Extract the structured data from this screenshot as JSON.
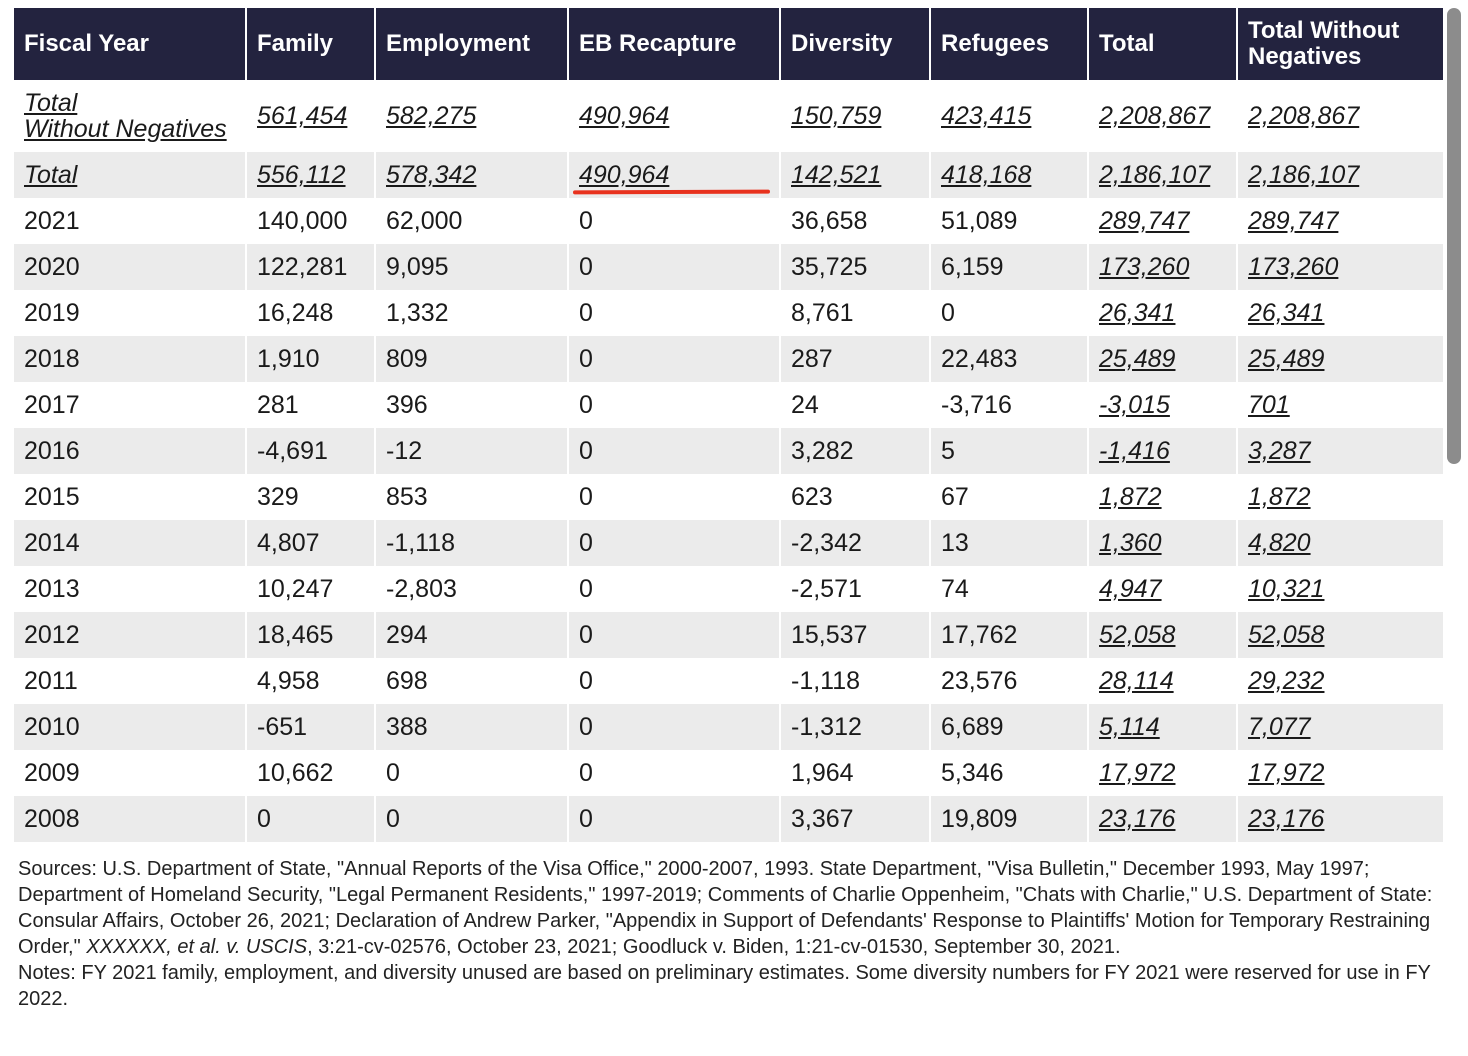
{
  "table": {
    "headers": [
      "Fiscal Year",
      "Family",
      "Employment",
      "EB Recapture",
      "Diversity",
      "Refugees",
      "Total",
      "Total Without Negatives"
    ],
    "rows": [
      [
        "Total Without Negatives",
        "561,454",
        "582,275",
        "490,964",
        "150,759",
        "423,415",
        "2,208,867",
        "2,208,867"
      ],
      [
        "Total",
        "556,112",
        "578,342",
        "490,964",
        "142,521",
        "418,168",
        "2,186,107",
        "2,186,107"
      ],
      [
        "2021",
        "140,000",
        "62,000",
        "0",
        "36,658",
        "51,089",
        "289,747",
        "289,747"
      ],
      [
        "2020",
        "122,281",
        "9,095",
        "0",
        "35,725",
        "6,159",
        "173,260",
        "173,260"
      ],
      [
        "2019",
        "16,248",
        "1,332",
        "0",
        "8,761",
        "0",
        "26,341",
        "26,341"
      ],
      [
        "2018",
        "1,910",
        "809",
        "0",
        "287",
        "22,483",
        "25,489",
        "25,489"
      ],
      [
        "2017",
        "281",
        "396",
        "0",
        "24",
        "-3,716",
        "-3,015",
        "701"
      ],
      [
        "2016",
        "-4,691",
        "-12",
        "0",
        "3,282",
        "5",
        "-1,416",
        "3,287"
      ],
      [
        "2015",
        "329",
        "853",
        "0",
        "623",
        "67",
        "1,872",
        "1,872"
      ],
      [
        "2014",
        "4,807",
        "-1,118",
        "0",
        "-2,342",
        "13",
        "1,360",
        "4,820"
      ],
      [
        "2013",
        "10,247",
        "-2,803",
        "0",
        "-2,571",
        "74",
        "4,947",
        "10,321"
      ],
      [
        "2012",
        "18,465",
        "294",
        "0",
        "15,537",
        "17,762",
        "52,058",
        "52,058"
      ],
      [
        "2011",
        "4,958",
        "698",
        "0",
        "-1,118",
        "23,576",
        "28,114",
        "29,232"
      ],
      [
        "2010",
        "-651",
        "388",
        "0",
        "-1,312",
        "6,689",
        "5,114",
        "7,077"
      ],
      [
        "2009",
        "10,662",
        "0",
        "0",
        "1,964",
        "5,346",
        "17,972",
        "17,972"
      ],
      [
        "2008",
        "0",
        "0",
        "0",
        "3,367",
        "19,809",
        "23,176",
        "23,176"
      ]
    ]
  },
  "sources": {
    "prefix": "Sources: U.S. Department of State, \"Annual Reports of the Visa Office,\" 2000-2007, 1993. State Department, \"Visa Bulletin,\" December 1993, May 1997; Department of Homeland Security, \"Legal Permanent Residents,\" 1997-2019; Comments of Charlie Oppenheim, \"Chats with Charlie,\" U.S. Department of State: Consular Affairs, October 26, 2021; Declaration of Andrew Parker, \"Appendix in Support of Defendants' Response to Plaintiffs' Motion for Temporary Restraining Order,\" ",
    "case": "XXXXXX, et al. v. USCIS",
    "suffix": ", 3:21-cv-02576, October 23, 2021; Goodluck v. Biden, 1:21-cv-01530, September 30, 2021."
  },
  "notes": " Notes: FY 2021 family, employment, and diversity unused are based on preliminary estimates. Some diversity numbers for FY 2021 were reserved for use in FY 2022.",
  "colors": {
    "header_bg": "#23233f",
    "stripe": "#ebebeb",
    "annotation": "#e8321e"
  }
}
